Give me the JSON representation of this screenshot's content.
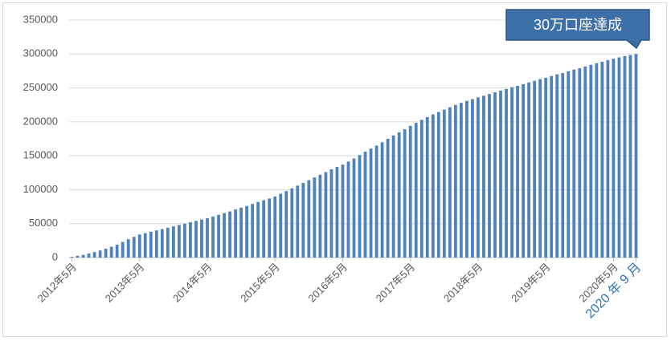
{
  "chart_data": {
    "type": "bar",
    "annotation": "30万口座達成",
    "categories": [
      "2012年5月",
      null,
      null,
      null,
      null,
      null,
      null,
      null,
      null,
      null,
      null,
      null,
      "2013年5月",
      null,
      null,
      null,
      null,
      null,
      null,
      null,
      null,
      null,
      null,
      null,
      "2014年5月",
      null,
      null,
      null,
      null,
      null,
      null,
      null,
      null,
      null,
      null,
      null,
      "2015年5月",
      null,
      null,
      null,
      null,
      null,
      null,
      null,
      null,
      null,
      null,
      null,
      "2016年5月",
      null,
      null,
      null,
      null,
      null,
      null,
      null,
      null,
      null,
      null,
      null,
      "2017年5月",
      null,
      null,
      null,
      null,
      null,
      null,
      null,
      null,
      null,
      null,
      null,
      "2018年5月",
      null,
      null,
      null,
      null,
      null,
      null,
      null,
      null,
      null,
      null,
      null,
      "2019年5月",
      null,
      null,
      null,
      null,
      null,
      null,
      null,
      null,
      null,
      null,
      null,
      "2020年5月",
      null,
      null,
      null,
      "2020 年 9 月"
    ],
    "values": [
      1000,
      2500,
      4000,
      6000,
      8000,
      10500,
      13000,
      16000,
      19000,
      23000,
      27000,
      30500,
      34000,
      36000,
      38000,
      40000,
      42000,
      44000,
      46000,
      48000,
      50000,
      52000,
      54000,
      56000,
      58000,
      60500,
      63000,
      65500,
      68000,
      71000,
      73500,
      76000,
      79000,
      82000,
      84500,
      87000,
      90000,
      94000,
      98000,
      102000,
      106000,
      110000,
      114000,
      118000,
      122000,
      126000,
      130000,
      133500,
      137000,
      141500,
      146000,
      151000,
      156000,
      160500,
      165000,
      170000,
      175000,
      180000,
      184500,
      189000,
      194000,
      198500,
      203000,
      207000,
      211000,
      214500,
      218000,
      221500,
      225000,
      228000,
      231000,
      233500,
      236000,
      238500,
      241000,
      243500,
      246000,
      248500,
      251000,
      253000,
      255500,
      258000,
      260500,
      263000,
      265000,
      267500,
      270000,
      272000,
      274500,
      277000,
      279000,
      281500,
      284000,
      286500,
      288500,
      291000,
      293000,
      295000,
      297000,
      298500,
      300000
    ],
    "color": "#4f81bd",
    "highlight_color": "#2e75b6",
    "ylim": [
      0,
      350000
    ],
    "yticks": [
      0,
      50000,
      100000,
      150000,
      200000,
      250000,
      300000,
      350000
    ],
    "grid": true
  }
}
